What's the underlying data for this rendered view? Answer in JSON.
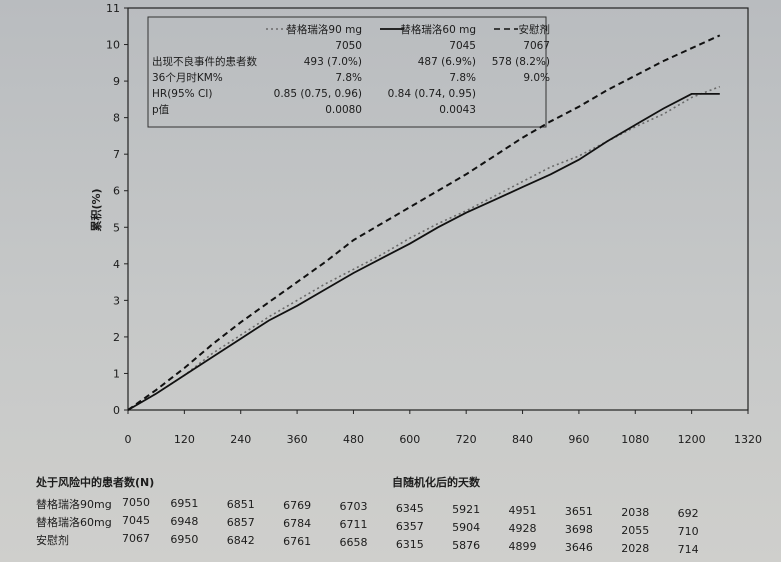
{
  "chart_data": {
    "type": "line",
    "ylabel": "累积(%)",
    "xlabel": "自随机化后的天数",
    "xlim": [
      0,
      1320
    ],
    "ylim": [
      0,
      11
    ],
    "xticks": [
      "0",
      "120",
      "240",
      "360",
      "480",
      "600",
      "720",
      "840",
      "960",
      "1080",
      "1200",
      "1320"
    ],
    "yticks": [
      "0",
      "1",
      "2",
      "3",
      "4",
      "5",
      "6",
      "7",
      "8",
      "9",
      "10",
      "11"
    ],
    "grid": false,
    "legend_position": "top-left",
    "legend_table": {
      "columns": [
        "替格瑞洛90 mg",
        "替格瑞洛60 mg",
        "安慰剂"
      ],
      "n_values": [
        "7050",
        "7045",
        "7067"
      ],
      "rows": [
        {
          "label": "出现不良事件的患者数",
          "values": [
            "493 (7.0%)",
            "487 (6.9%)",
            "578 (8.2%)"
          ]
        },
        {
          "label": "36个月时KM%",
          "values": [
            "7.8%",
            "7.8%",
            "9.0%"
          ]
        },
        {
          "label": "HR(95% CI)",
          "values": [
            "0.85 (0.75, 0.96)",
            "0.84 (0.74, 0.95)",
            ""
          ]
        },
        {
          "label": "p值",
          "values": [
            "0.0080",
            "0.0043",
            ""
          ]
        }
      ]
    },
    "series": [
      {
        "name": "替格瑞洛90 mg",
        "style": "dotted",
        "color": "#6a6a6a",
        "x": [
          0,
          60,
          120,
          180,
          240,
          300,
          360,
          420,
          480,
          540,
          600,
          660,
          720,
          780,
          840,
          900,
          960,
          1020,
          1080,
          1140,
          1200,
          1260
        ],
        "y": [
          0,
          0.45,
          0.95,
          1.55,
          2.05,
          2.55,
          3.0,
          3.45,
          3.85,
          4.25,
          4.7,
          5.1,
          5.45,
          5.85,
          6.25,
          6.65,
          6.95,
          7.35,
          7.75,
          8.1,
          8.55,
          8.85
        ]
      },
      {
        "name": "替格瑞洛60 mg",
        "style": "solid",
        "color": "#111111",
        "x": [
          0,
          60,
          120,
          180,
          240,
          300,
          360,
          420,
          480,
          540,
          600,
          660,
          720,
          780,
          840,
          900,
          960,
          1020,
          1080,
          1140,
          1200,
          1260
        ],
        "y": [
          0,
          0.45,
          0.95,
          1.45,
          1.95,
          2.45,
          2.85,
          3.3,
          3.75,
          4.15,
          4.55,
          5.0,
          5.4,
          5.75,
          6.1,
          6.45,
          6.85,
          7.35,
          7.8,
          8.25,
          8.65,
          8.65
        ]
      },
      {
        "name": "安慰剂",
        "style": "dashed",
        "color": "#111111",
        "x": [
          0,
          60,
          120,
          180,
          240,
          300,
          360,
          420,
          480,
          540,
          600,
          660,
          720,
          780,
          840,
          900,
          960,
          1020,
          1080,
          1140,
          1200,
          1260
        ],
        "y": [
          0,
          0.55,
          1.15,
          1.8,
          2.4,
          2.95,
          3.5,
          4.05,
          4.65,
          5.1,
          5.55,
          6.0,
          6.45,
          6.95,
          7.45,
          7.9,
          8.3,
          8.75,
          9.15,
          9.55,
          9.9,
          10.25
        ]
      }
    ],
    "risk_table": {
      "title": "处于风险中的患者数(N)",
      "days": [
        0,
        120,
        240,
        360,
        480,
        600,
        720,
        840,
        960,
        1080,
        1200
      ],
      "rows": [
        {
          "label": "替格瑞洛90mg",
          "values": [
            "7050",
            "6951",
            "6851",
            "6769",
            "6703",
            "6345",
            "5921",
            "4951",
            "3651",
            "2038",
            "692"
          ]
        },
        {
          "label": "替格瑞洛60mg",
          "values": [
            "7045",
            "6948",
            "6857",
            "6784",
            "6711",
            "6357",
            "5904",
            "4928",
            "3698",
            "2055",
            "710"
          ]
        },
        {
          "label": "安慰剂",
          "values": [
            "7067",
            "6950",
            "6842",
            "6761",
            "6658",
            "6315",
            "5876",
            "4899",
            "3646",
            "2028",
            "714"
          ]
        }
      ]
    }
  }
}
